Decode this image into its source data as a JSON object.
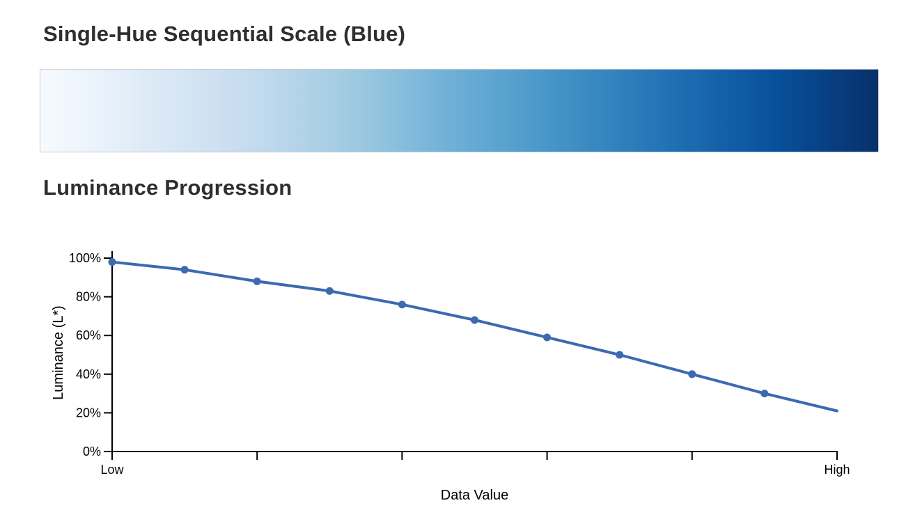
{
  "page": {
    "background": "#ffffff",
    "title_color": "#2e2e2e"
  },
  "sections": {
    "scale": {
      "title": "Single-Hue Sequential Scale (Blue)"
    },
    "luminance": {
      "title": "Luminance Progression"
    }
  },
  "gradient_bar": {
    "name": "single-hue-blue-sequential-gradient",
    "stops": [
      "#f7fbff",
      "#deebf7",
      "#c6dbef",
      "#9ecae1",
      "#6baed6",
      "#4292c6",
      "#2171b5",
      "#08519c",
      "#08306b"
    ],
    "border_color": "#c9cacd"
  },
  "chart_data": {
    "type": "line",
    "title": "Luminance Progression",
    "xlabel": "Data Value",
    "ylabel": "Luminance (L*)",
    "x_tick_labels": [
      "Low",
      "High"
    ],
    "num_x_ticks": 6,
    "y_tick_labels": [
      "0%",
      "20%",
      "40%",
      "60%",
      "80%",
      "100%"
    ],
    "ylim": [
      0,
      100
    ],
    "x": [
      0,
      1,
      2,
      3,
      4,
      5,
      6,
      7,
      8,
      9,
      10
    ],
    "values": [
      98,
      94,
      88,
      83,
      76,
      68,
      59,
      50,
      40,
      30,
      21
    ],
    "marker_on_last_point": false,
    "line_color": "#3b6ab0",
    "marker_color": "#3b6ab0",
    "axis_color": "#000000"
  }
}
